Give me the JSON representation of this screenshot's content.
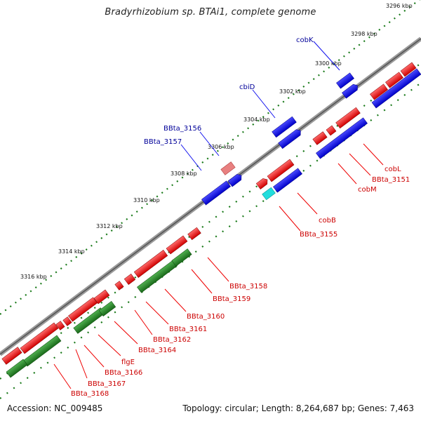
{
  "title": "Bradyrhizobium sp. BTAi1, complete genome",
  "footer": {
    "accession": "Accession: NC_009485",
    "topology": "Topology: circular; Length: 8,264,687 bp; Genes: 7,463"
  },
  "colors": {
    "forward_cds": "#1010ee",
    "reverse_cds": "#ee0000",
    "rna_like": "#2a8a2a",
    "pseudo": "#e88080",
    "other": "#22dddd",
    "backbone": "#808080",
    "dots": "#1a7a1a",
    "label_red": "#cc0000",
    "label_blue": "#000099"
  },
  "scale_ticks": [
    {
      "text": "3296 kbp"
    },
    {
      "text": "3298 kbp"
    },
    {
      "text": "3300 kbp"
    },
    {
      "text": "3302 kbp"
    },
    {
      "text": "3304 kbp"
    },
    {
      "text": "3306 kbp"
    },
    {
      "text": "3308 kbp"
    },
    {
      "text": "3310 kbp"
    },
    {
      "text": "3312 kbp"
    },
    {
      "text": "3314 kbp"
    },
    {
      "text": "3316 kbp"
    }
  ],
  "labels_outer": [
    "cobK",
    "cbiD",
    "BBta_3156",
    "BBta_3157"
  ],
  "labels_inner": [
    "cobL",
    "BBta_3151",
    "cobM",
    "cobB",
    "BBta_3155",
    "BBta_3158",
    "BBta_3159",
    "BBta_3160",
    "BBta_3161",
    "BBta_3162",
    "BBta_3164",
    "flgE",
    "BBta_3166",
    "BBta_3167",
    "BBta_3168"
  ]
}
